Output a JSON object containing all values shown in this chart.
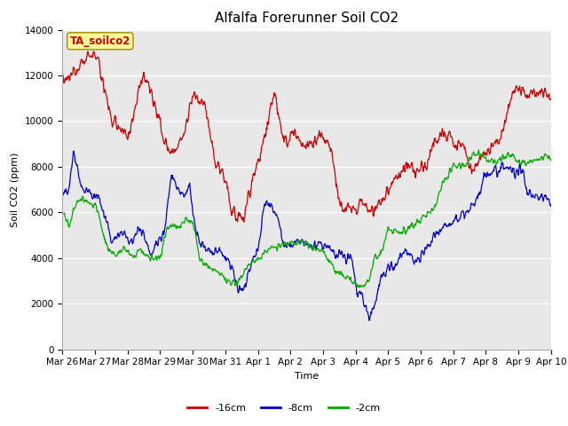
{
  "title": "Alfalfa Forerunner Soil CO2",
  "ylabel": "Soil CO2 (ppm)",
  "xlabel": "Time",
  "legend_label": "TA_soilco2",
  "ylim": [
    0,
    14000
  ],
  "yticks": [
    0,
    2000,
    4000,
    6000,
    8000,
    10000,
    12000,
    14000
  ],
  "xtick_labels": [
    "Mar 26",
    "Mar 27",
    "Mar 28",
    "Mar 29",
    "Mar 30",
    "Mar 31",
    "Apr 1",
    "Apr 2",
    "Apr 3",
    "Apr 4",
    "Apr 5",
    "Apr 6",
    "Apr 7",
    "Apr 8",
    "Apr 9",
    "Apr 10"
  ],
  "line_colors": [
    "#cc0000",
    "#0000cc",
    "#00aa00"
  ],
  "line_labels": [
    "-16cm",
    "-8cm",
    "-2cm"
  ],
  "fig_bg_color": "#ffffff",
  "plot_bg_color": "#e8e8e8",
  "grid_color": "#ffffff",
  "title_fontsize": 11,
  "axis_label_fontsize": 8,
  "tick_fontsize": 7.5,
  "legend_fontsize": 8
}
